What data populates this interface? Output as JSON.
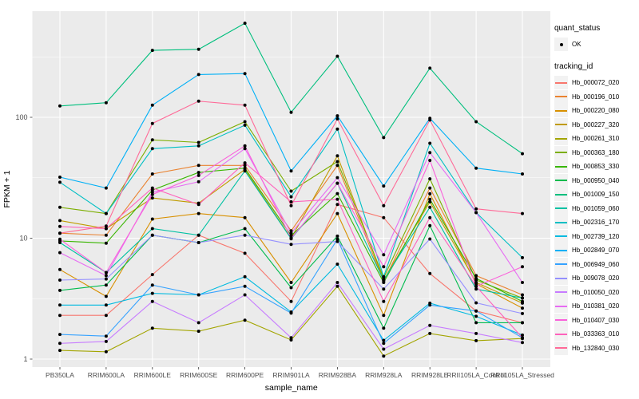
{
  "figure": {
    "panel_background": "#EBEBEB",
    "gridline_color": "#FFFFFF",
    "tick_label_color": "#4D4D4D",
    "point_color": "#000000",
    "x_axis_title": "sample_name",
    "y_axis_title": "FPKM + 1"
  },
  "legend": {
    "shape_legend": {
      "title": "quant_status",
      "items": [
        {
          "label": "OK"
        }
      ]
    },
    "color_legend": {
      "title": "tracking_id"
    }
  },
  "chart_data": {
    "type": "line",
    "title": "",
    "xlabel": "sample_name",
    "ylabel": "FPKM + 1",
    "log_y": true,
    "grid": true,
    "legend_position": "right",
    "y_ticks": [
      1,
      10,
      100
    ],
    "y_tick_labels": [
      "1",
      "10",
      "100"
    ],
    "ylim": [
      1,
      760
    ],
    "categories": [
      "PB350LA",
      "RRIM600LA",
      "RRIM600LE",
      "RRIM600SE",
      "RRIM600PE",
      "RRIM901LA",
      "RRIM928BA",
      "RRIM928LA",
      "RRIM928LE",
      "RRII105LA_Control",
      "RRII105LA_Stressed"
    ],
    "quant_status_all": "OK",
    "series": [
      {
        "name": "Hb_000072_020",
        "color": "#F8766D",
        "values": [
          2.3,
          2.3,
          5.0,
          10.6,
          7.5,
          3.0,
          19,
          14.8,
          5.1,
          2.5,
          2.0
        ]
      },
      {
        "name": "Hb_000196_010",
        "color": "#EA8331",
        "values": [
          11,
          10.6,
          34,
          40,
          40,
          11.5,
          40,
          4.4,
          26,
          4.9,
          3.4
        ]
      },
      {
        "name": "Hb_000220_080",
        "color": "#D89000",
        "values": [
          5.5,
          3.3,
          14.4,
          16,
          14.8,
          4.3,
          16,
          2.3,
          23.3,
          4.2,
          2.64
        ]
      },
      {
        "name": "Hb_000227_320",
        "color": "#C09B00",
        "values": [
          14,
          12,
          21.5,
          19.5,
          37,
          10,
          48,
          4.5,
          20,
          4.3,
          2.9
        ]
      },
      {
        "name": "Hb_000261_310",
        "color": "#A3A500",
        "values": [
          1.18,
          1.15,
          1.8,
          1.7,
          2.1,
          1.44,
          4.0,
          1.06,
          1.63,
          1.42,
          1.48
        ]
      },
      {
        "name": "Hb_000363_180",
        "color": "#7CAE00",
        "values": [
          18,
          16,
          65,
          62,
          92,
          24.5,
          43,
          4.7,
          31,
          4.5,
          3.2
        ]
      },
      {
        "name": "Hb_000853_330",
        "color": "#39B600",
        "values": [
          9.5,
          9.1,
          25,
          35,
          38,
          10.5,
          23.4,
          4.3,
          21,
          4.65,
          3.0
        ]
      },
      {
        "name": "Hb_000950_040",
        "color": "#00BB4E",
        "values": [
          3.7,
          4.1,
          10.6,
          9.2,
          12,
          3.9,
          10.4,
          1.8,
          12.7,
          2.0,
          2.0
        ]
      },
      {
        "name": "Hb_001009_150",
        "color": "#00BF7D",
        "values": [
          124,
          132,
          358,
          365,
          600,
          110,
          320,
          68,
          255,
          92,
          50
        ]
      },
      {
        "name": "Hb_001059_060",
        "color": "#00C1A3",
        "values": [
          9.2,
          5.2,
          12,
          10.6,
          36,
          9.9,
          28.5,
          4.5,
          18,
          3.8,
          3.2
        ]
      },
      {
        "name": "Hb_002316_170",
        "color": "#00BFC4",
        "values": [
          29,
          16,
          55,
          58,
          86,
          22,
          80,
          4.8,
          61,
          16.3,
          6.9
        ]
      },
      {
        "name": "Hb_002739_120",
        "color": "#00BAE0",
        "values": [
          2.8,
          2.8,
          3.5,
          3.4,
          4.8,
          2.45,
          6.1,
          1.43,
          2.9,
          2.26,
          1.58
        ]
      },
      {
        "name": "Hb_002849_070",
        "color": "#00B0F6",
        "values": [
          32,
          26,
          126,
          226,
          230,
          36,
          103,
          27,
          98,
          38,
          34
        ]
      },
      {
        "name": "Hb_006949_060",
        "color": "#35A2FF",
        "values": [
          1.6,
          1.55,
          4.1,
          3.4,
          4.0,
          2.4,
          9.8,
          1.35,
          2.8,
          2.5,
          1.5
        ]
      },
      {
        "name": "Hb_009078_020",
        "color": "#9590FF",
        "values": [
          4.5,
          4.6,
          10.6,
          9.2,
          10.6,
          8.9,
          9.4,
          3.8,
          9.85,
          2.92,
          2.38
        ]
      },
      {
        "name": "Hb_010050_020",
        "color": "#C77CFF",
        "values": [
          1.35,
          1.4,
          3.0,
          2.0,
          3.4,
          1.5,
          4.3,
          1.21,
          1.9,
          1.63,
          1.37
        ]
      },
      {
        "name": "Hb_010381_020",
        "color": "#E76BF3",
        "values": [
          7.6,
          4.9,
          24,
          29.3,
          55,
          11,
          31.7,
          7.3,
          51,
          16.3,
          4.3
        ]
      },
      {
        "name": "Hb_010407_030",
        "color": "#FA62DB",
        "values": [
          9.8,
          5.2,
          23,
          33,
          58,
          10,
          28.5,
          5.8,
          44,
          4.0,
          5.8
        ]
      },
      {
        "name": "Hb_033363_010",
        "color": "#FF62BC",
        "values": [
          12.5,
          12,
          26,
          19,
          42,
          20,
          21,
          3.0,
          14.8,
          4.0,
          1.5
        ]
      },
      {
        "name": "Hb_132840_030",
        "color": "#FF6A98",
        "values": [
          11,
          12.6,
          89,
          136,
          126,
          18.6,
          97,
          18.6,
          95,
          17.5,
          16
        ]
      }
    ]
  }
}
